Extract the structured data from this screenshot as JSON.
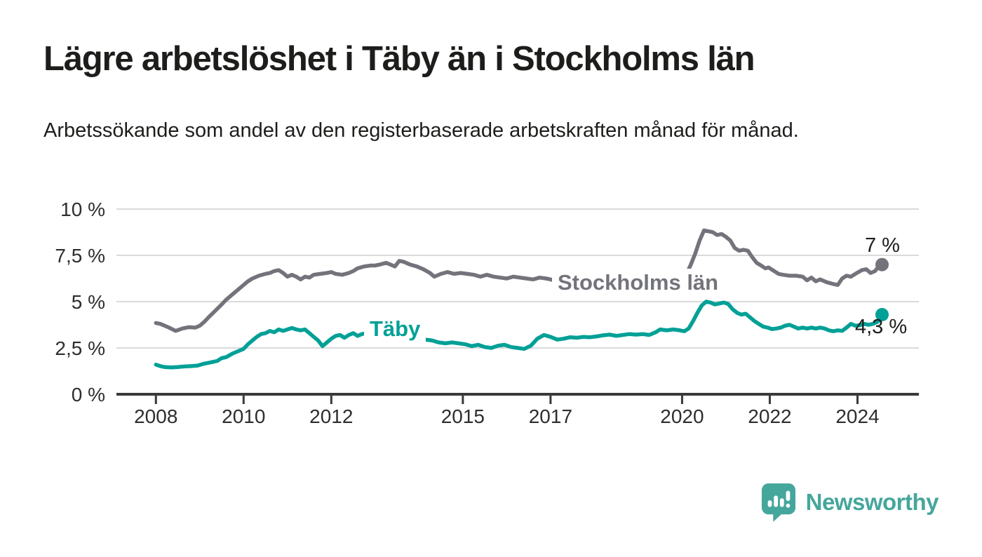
{
  "title": "Lägre arbetslöshet i Täby än i Stockholms län",
  "subtitle": "Arbetssökande som andel av den registerbaserade arbetskraften månad för månad.",
  "branding": {
    "logo_text": "Newsworthy",
    "logo_icon": "newsworthy-speech-bubble-chart-icon",
    "brand_color": "#45a69c"
  },
  "colors": {
    "stockholm_line": "#73737b",
    "taby_line": "#00a096",
    "gridline": "#dadada",
    "axis": "#3a3a3a",
    "text": "#1d1d1b"
  },
  "chart_data": {
    "type": "line",
    "unit": "%",
    "grid": "horizontal",
    "legend_position": "inline-labels",
    "x_axis": {
      "ticks": [
        2008,
        2010,
        2012,
        2015,
        2017,
        2020,
        2022,
        2024
      ],
      "range": [
        2007.1,
        2025.4
      ]
    },
    "y_axis": {
      "ticks": [
        "0 %",
        "2,5 %",
        "5 %",
        "7,5 %",
        "10 %"
      ],
      "tick_values": [
        0,
        2.5,
        5,
        7.5,
        10
      ],
      "range": [
        0,
        10
      ]
    },
    "series": [
      {
        "id": "stockholms-lan",
        "name": "Stockholms län",
        "color": "#73737b",
        "end_label": "7 %",
        "end_value": 7.0,
        "points": [
          [
            2008.0,
            3.85
          ],
          [
            2008.1,
            3.8
          ],
          [
            2008.2,
            3.7
          ],
          [
            2008.3,
            3.6
          ],
          [
            2008.45,
            3.42
          ],
          [
            2008.6,
            3.55
          ],
          [
            2008.75,
            3.62
          ],
          [
            2008.9,
            3.6
          ],
          [
            2009.0,
            3.7
          ],
          [
            2009.1,
            3.9
          ],
          [
            2009.2,
            4.15
          ],
          [
            2009.35,
            4.5
          ],
          [
            2009.5,
            4.85
          ],
          [
            2009.6,
            5.1
          ],
          [
            2009.75,
            5.4
          ],
          [
            2009.9,
            5.7
          ],
          [
            2010.0,
            5.9
          ],
          [
            2010.1,
            6.1
          ],
          [
            2010.2,
            6.25
          ],
          [
            2010.35,
            6.4
          ],
          [
            2010.5,
            6.5
          ],
          [
            2010.6,
            6.55
          ],
          [
            2010.7,
            6.65
          ],
          [
            2010.8,
            6.7
          ],
          [
            2010.9,
            6.55
          ],
          [
            2011.0,
            6.35
          ],
          [
            2011.1,
            6.45
          ],
          [
            2011.2,
            6.35
          ],
          [
            2011.3,
            6.2
          ],
          [
            2011.4,
            6.35
          ],
          [
            2011.5,
            6.3
          ],
          [
            2011.6,
            6.45
          ],
          [
            2011.75,
            6.5
          ],
          [
            2011.9,
            6.55
          ],
          [
            2012.0,
            6.6
          ],
          [
            2012.1,
            6.5
          ],
          [
            2012.25,
            6.45
          ],
          [
            2012.4,
            6.55
          ],
          [
            2012.5,
            6.65
          ],
          [
            2012.6,
            6.8
          ],
          [
            2012.75,
            6.9
          ],
          [
            2012.9,
            6.95
          ],
          [
            2013.0,
            6.95
          ],
          [
            2013.1,
            7.0
          ],
          [
            2013.25,
            7.1
          ],
          [
            2013.35,
            7.0
          ],
          [
            2013.45,
            6.9
          ],
          [
            2013.55,
            7.2
          ],
          [
            2013.65,
            7.15
          ],
          [
            2013.8,
            7.0
          ],
          [
            2013.95,
            6.9
          ],
          [
            2014.1,
            6.75
          ],
          [
            2014.25,
            6.55
          ],
          [
            2014.35,
            6.35
          ],
          [
            2014.5,
            6.5
          ],
          [
            2014.65,
            6.6
          ],
          [
            2014.8,
            6.5
          ],
          [
            2014.95,
            6.55
          ],
          [
            2015.1,
            6.5
          ],
          [
            2015.25,
            6.45
          ],
          [
            2015.4,
            6.35
          ],
          [
            2015.55,
            6.45
          ],
          [
            2015.7,
            6.35
          ],
          [
            2015.85,
            6.3
          ],
          [
            2016.0,
            6.25
          ],
          [
            2016.15,
            6.35
          ],
          [
            2016.3,
            6.3
          ],
          [
            2016.45,
            6.25
          ],
          [
            2016.6,
            6.2
          ],
          [
            2016.75,
            6.3
          ],
          [
            2016.9,
            6.25
          ],
          [
            2017.0,
            6.2
          ],
          [
            2017.15,
            6.1
          ],
          [
            2017.3,
            6.05
          ],
          [
            2017.5,
            6.0
          ],
          [
            2017.7,
            5.95
          ],
          [
            2017.9,
            5.9
          ],
          [
            2018.1,
            5.85
          ],
          [
            2018.3,
            5.8
          ],
          [
            2018.5,
            5.75
          ],
          [
            2018.7,
            5.8
          ],
          [
            2018.9,
            5.75
          ],
          [
            2019.1,
            5.8
          ],
          [
            2019.3,
            5.85
          ],
          [
            2019.5,
            5.9
          ],
          [
            2019.7,
            5.95
          ],
          [
            2019.9,
            6.05
          ],
          [
            2020.0,
            6.2
          ],
          [
            2020.1,
            6.5
          ],
          [
            2020.2,
            7.0
          ],
          [
            2020.3,
            7.6
          ],
          [
            2020.4,
            8.3
          ],
          [
            2020.5,
            8.85
          ],
          [
            2020.6,
            8.8
          ],
          [
            2020.7,
            8.75
          ],
          [
            2020.8,
            8.6
          ],
          [
            2020.9,
            8.65
          ],
          [
            2021.0,
            8.5
          ],
          [
            2021.1,
            8.3
          ],
          [
            2021.2,
            7.9
          ],
          [
            2021.3,
            7.75
          ],
          [
            2021.4,
            7.8
          ],
          [
            2021.5,
            7.75
          ],
          [
            2021.6,
            7.4
          ],
          [
            2021.7,
            7.1
          ],
          [
            2021.8,
            6.95
          ],
          [
            2021.9,
            6.8
          ],
          [
            2021.97,
            6.85
          ],
          [
            2022.1,
            6.65
          ],
          [
            2022.2,
            6.5
          ],
          [
            2022.3,
            6.45
          ],
          [
            2022.45,
            6.4
          ],
          [
            2022.6,
            6.4
          ],
          [
            2022.75,
            6.35
          ],
          [
            2022.85,
            6.15
          ],
          [
            2022.95,
            6.3
          ],
          [
            2023.05,
            6.1
          ],
          [
            2023.15,
            6.2
          ],
          [
            2023.3,
            6.05
          ],
          [
            2023.45,
            5.95
          ],
          [
            2023.55,
            5.9
          ],
          [
            2023.65,
            6.25
          ],
          [
            2023.75,
            6.4
          ],
          [
            2023.85,
            6.35
          ],
          [
            2023.95,
            6.5
          ],
          [
            2024.1,
            6.7
          ],
          [
            2024.2,
            6.75
          ],
          [
            2024.3,
            6.55
          ],
          [
            2024.4,
            6.65
          ],
          [
            2024.5,
            6.95
          ],
          [
            2024.56,
            7.0
          ]
        ]
      },
      {
        "id": "taby",
        "name": "Täby",
        "color": "#00a096",
        "end_label": "4,3 %",
        "end_value": 4.3,
        "points": [
          [
            2008.0,
            1.6
          ],
          [
            2008.1,
            1.52
          ],
          [
            2008.2,
            1.47
          ],
          [
            2008.35,
            1.45
          ],
          [
            2008.5,
            1.47
          ],
          [
            2008.65,
            1.5
          ],
          [
            2008.8,
            1.52
          ],
          [
            2008.95,
            1.55
          ],
          [
            2009.1,
            1.65
          ],
          [
            2009.25,
            1.72
          ],
          [
            2009.4,
            1.8
          ],
          [
            2009.5,
            1.95
          ],
          [
            2009.6,
            2.0
          ],
          [
            2009.75,
            2.2
          ],
          [
            2009.9,
            2.35
          ],
          [
            2010.0,
            2.45
          ],
          [
            2010.1,
            2.7
          ],
          [
            2010.2,
            2.9
          ],
          [
            2010.3,
            3.1
          ],
          [
            2010.4,
            3.25
          ],
          [
            2010.5,
            3.3
          ],
          [
            2010.6,
            3.42
          ],
          [
            2010.7,
            3.35
          ],
          [
            2010.8,
            3.5
          ],
          [
            2010.9,
            3.42
          ],
          [
            2011.0,
            3.5
          ],
          [
            2011.1,
            3.58
          ],
          [
            2011.2,
            3.5
          ],
          [
            2011.3,
            3.45
          ],
          [
            2011.4,
            3.5
          ],
          [
            2011.5,
            3.3
          ],
          [
            2011.6,
            3.1
          ],
          [
            2011.7,
            2.9
          ],
          [
            2011.8,
            2.6
          ],
          [
            2011.9,
            2.8
          ],
          [
            2012.0,
            3.0
          ],
          [
            2012.1,
            3.15
          ],
          [
            2012.2,
            3.2
          ],
          [
            2012.3,
            3.05
          ],
          [
            2012.4,
            3.2
          ],
          [
            2012.5,
            3.3
          ],
          [
            2012.6,
            3.15
          ],
          [
            2012.7,
            3.25
          ],
          [
            2012.8,
            3.3
          ],
          [
            2012.9,
            3.2
          ],
          [
            2013.0,
            3.3
          ],
          [
            2013.1,
            3.35
          ],
          [
            2013.25,
            3.25
          ],
          [
            2013.4,
            3.2
          ],
          [
            2013.55,
            3.15
          ],
          [
            2013.7,
            3.1
          ],
          [
            2013.85,
            3.05
          ],
          [
            2014.0,
            3.0
          ],
          [
            2014.15,
            2.95
          ],
          [
            2014.3,
            2.9
          ],
          [
            2014.45,
            2.8
          ],
          [
            2014.6,
            2.75
          ],
          [
            2014.75,
            2.8
          ],
          [
            2014.9,
            2.75
          ],
          [
            2015.05,
            2.7
          ],
          [
            2015.2,
            2.6
          ],
          [
            2015.35,
            2.67
          ],
          [
            2015.5,
            2.55
          ],
          [
            2015.65,
            2.5
          ],
          [
            2015.8,
            2.62
          ],
          [
            2015.95,
            2.67
          ],
          [
            2016.1,
            2.55
          ],
          [
            2016.25,
            2.5
          ],
          [
            2016.4,
            2.45
          ],
          [
            2016.55,
            2.62
          ],
          [
            2016.7,
            3.0
          ],
          [
            2016.85,
            3.2
          ],
          [
            2017.0,
            3.1
          ],
          [
            2017.15,
            2.95
          ],
          [
            2017.3,
            3.0
          ],
          [
            2017.45,
            3.08
          ],
          [
            2017.6,
            3.05
          ],
          [
            2017.75,
            3.1
          ],
          [
            2017.9,
            3.08
          ],
          [
            2018.05,
            3.12
          ],
          [
            2018.2,
            3.18
          ],
          [
            2018.35,
            3.22
          ],
          [
            2018.5,
            3.15
          ],
          [
            2018.65,
            3.2
          ],
          [
            2018.8,
            3.25
          ],
          [
            2018.95,
            3.22
          ],
          [
            2019.1,
            3.25
          ],
          [
            2019.25,
            3.2
          ],
          [
            2019.4,
            3.35
          ],
          [
            2019.5,
            3.5
          ],
          [
            2019.65,
            3.45
          ],
          [
            2019.8,
            3.5
          ],
          [
            2019.95,
            3.45
          ],
          [
            2020.05,
            3.4
          ],
          [
            2020.15,
            3.55
          ],
          [
            2020.25,
            3.95
          ],
          [
            2020.35,
            4.4
          ],
          [
            2020.45,
            4.8
          ],
          [
            2020.55,
            5.0
          ],
          [
            2020.65,
            4.95
          ],
          [
            2020.75,
            4.85
          ],
          [
            2020.85,
            4.9
          ],
          [
            2020.95,
            4.95
          ],
          [
            2021.05,
            4.88
          ],
          [
            2021.15,
            4.6
          ],
          [
            2021.25,
            4.4
          ],
          [
            2021.35,
            4.3
          ],
          [
            2021.45,
            4.35
          ],
          [
            2021.55,
            4.15
          ],
          [
            2021.65,
            3.95
          ],
          [
            2021.75,
            3.8
          ],
          [
            2021.85,
            3.65
          ],
          [
            2021.95,
            3.6
          ],
          [
            2022.05,
            3.52
          ],
          [
            2022.15,
            3.55
          ],
          [
            2022.25,
            3.6
          ],
          [
            2022.35,
            3.7
          ],
          [
            2022.45,
            3.75
          ],
          [
            2022.55,
            3.65
          ],
          [
            2022.65,
            3.55
          ],
          [
            2022.75,
            3.6
          ],
          [
            2022.85,
            3.55
          ],
          [
            2022.95,
            3.6
          ],
          [
            2023.05,
            3.55
          ],
          [
            2023.15,
            3.6
          ],
          [
            2023.25,
            3.55
          ],
          [
            2023.35,
            3.45
          ],
          [
            2023.45,
            3.4
          ],
          [
            2023.55,
            3.45
          ],
          [
            2023.65,
            3.42
          ],
          [
            2023.75,
            3.6
          ],
          [
            2023.85,
            3.8
          ],
          [
            2023.95,
            3.7
          ],
          [
            2024.05,
            3.72
          ],
          [
            2024.15,
            3.8
          ],
          [
            2024.25,
            3.75
          ],
          [
            2024.35,
            3.8
          ],
          [
            2024.45,
            3.9
          ],
          [
            2024.5,
            4.0
          ],
          [
            2024.56,
            4.3
          ]
        ]
      }
    ]
  }
}
